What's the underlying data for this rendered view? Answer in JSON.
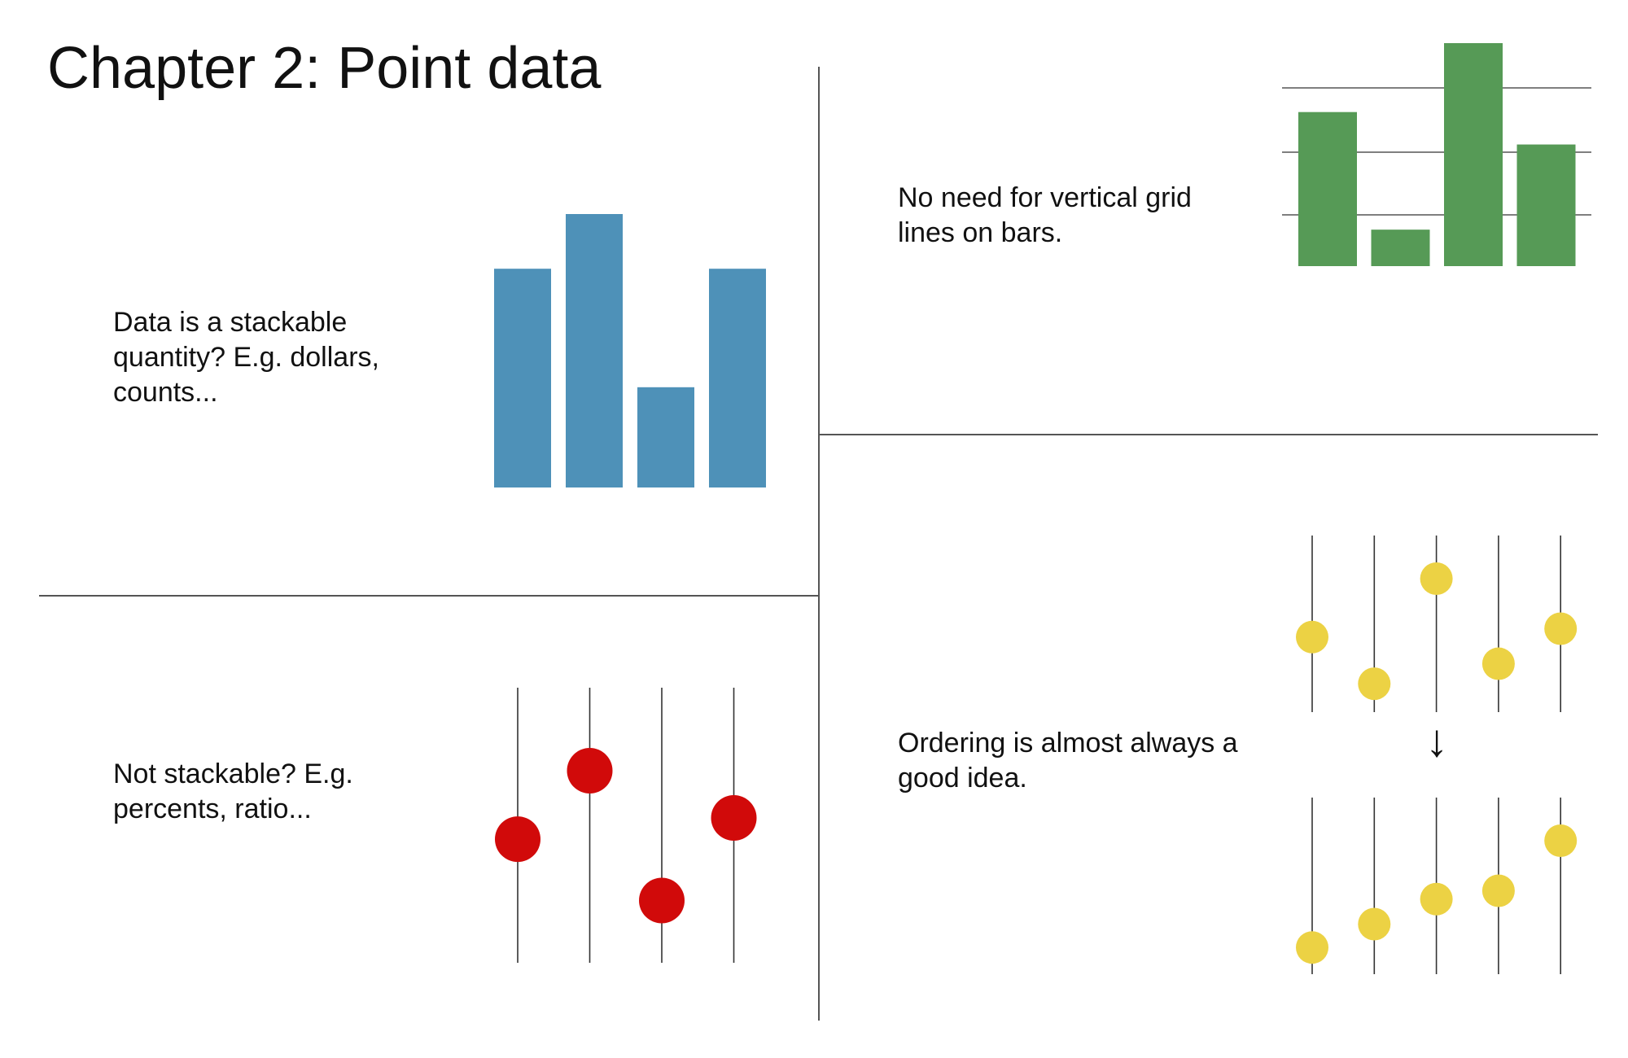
{
  "title": "Chapter 2: Point data",
  "panels": [
    {
      "caption": "Data is a stackable quantity? E.g. dollars, counts..."
    },
    {
      "caption": "No need for vertical grid lines on bars."
    },
    {
      "caption": "Not stackable? E.g. percents, ratio..."
    },
    {
      "caption": "Ordering is almost always a good idea."
    }
  ],
  "arrow_glyph": "↓",
  "colors": {
    "blue_bars": "#4e91b8",
    "green_bars": "#569a56",
    "red_dots": "#d10a0a",
    "yellow_dots": "#ecd244",
    "lines": "#555555"
  },
  "chart_data": [
    {
      "type": "bar",
      "values": [
        240,
        300,
        110,
        240
      ],
      "ylim": [
        0,
        300
      ],
      "grid": false
    },
    {
      "type": "bar",
      "values": [
        190,
        45,
        275,
        150
      ],
      "ylim": [
        0,
        275
      ],
      "grid": "horizontal"
    },
    {
      "type": "scatter",
      "values": [
        41,
        70,
        15,
        50
      ],
      "ylim": [
        0,
        100
      ],
      "grid": "vertical"
    },
    {
      "type": "scatter",
      "values": [
        45,
        17,
        80,
        29,
        50
      ],
      "ylim": [
        0,
        100
      ],
      "grid": "vertical"
    },
    {
      "type": "scatter",
      "values": [
        16,
        30,
        45,
        50,
        80
      ],
      "ylim": [
        0,
        100
      ],
      "grid": "vertical"
    }
  ]
}
